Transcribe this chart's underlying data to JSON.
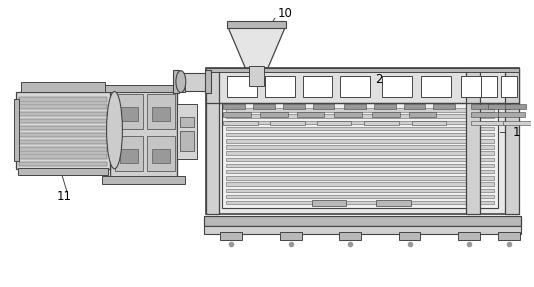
{
  "bg_color": "#ffffff",
  "lc": "#444444",
  "lc2": "#666666",
  "fl": "#e8e8e8",
  "fm": "#d0d0d0",
  "fd": "#b8b8b8",
  "fdd": "#999999",
  "label_fontsize": 8.5,
  "fig_w": 5.34,
  "fig_h": 2.87,
  "dpi": 100
}
